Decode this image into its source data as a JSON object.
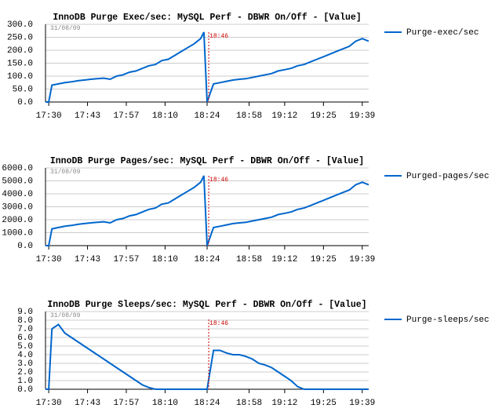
{
  "chart_data": [
    {
      "type": "line",
      "title": "InnoDB Purge Exec/sec: MySQL Perf - DBWR On/Off - [Value]",
      "date_label": "31/08/09",
      "annotation": {
        "text": "18:46",
        "x": 50.5
      },
      "x": [
        0,
        1,
        2,
        4,
        6,
        8,
        10,
        12,
        14,
        16,
        18,
        20,
        22,
        24,
        26,
        28,
        30,
        32,
        34,
        36,
        38,
        40,
        42,
        44,
        46,
        48,
        49,
        50,
        52,
        54,
        56,
        58,
        60,
        62,
        64,
        66,
        68,
        70,
        72,
        74,
        76,
        78,
        80,
        82,
        84,
        86,
        88,
        90,
        92,
        94,
        96,
        98,
        100
      ],
      "series": [
        {
          "name": "Purge-exec/sec",
          "color": "#0066cc",
          "values": [
            0,
            0,
            65,
            70,
            75,
            78,
            82,
            85,
            88,
            90,
            92,
            88,
            100,
            105,
            115,
            120,
            130,
            140,
            145,
            160,
            165,
            180,
            195,
            210,
            225,
            245,
            270,
            0,
            70,
            75,
            80,
            85,
            88,
            90,
            95,
            100,
            105,
            110,
            120,
            125,
            130,
            140,
            145,
            155,
            165,
            175,
            185,
            195,
            205,
            215,
            235,
            245,
            235
          ]
        }
      ],
      "xlim": [
        0,
        100
      ],
      "xticks": [
        {
          "value": 1,
          "label": "17:30"
        },
        {
          "value": 13,
          "label": "17:43"
        },
        {
          "value": 25,
          "label": "17:57"
        },
        {
          "value": 37,
          "label": "18:10"
        },
        {
          "value": 50,
          "label": "18:24"
        },
        {
          "value": 63,
          "label": "18:58"
        },
        {
          "value": 74,
          "label": "19:12"
        },
        {
          "value": 86,
          "label": "19:25"
        },
        {
          "value": 98,
          "label": "19:39"
        }
      ],
      "ylim": [
        0,
        300
      ],
      "yticks": [
        {
          "value": 0,
          "label": "0.0"
        },
        {
          "value": 50,
          "label": "50.0"
        },
        {
          "value": 100,
          "label": "100.0"
        },
        {
          "value": 150,
          "label": "150.0"
        },
        {
          "value": 200,
          "label": "200.0"
        },
        {
          "value": 250,
          "label": "250.0"
        },
        {
          "value": 300,
          "label": "300.0"
        }
      ],
      "grid": true
    },
    {
      "type": "line",
      "title": "InnoDB Purge Pages/sec: MySQL Perf - DBWR On/Off - [Value]",
      "date_label": "31/08/09",
      "annotation": {
        "text": "18:46",
        "x": 50.5
      },
      "x": [
        0,
        1,
        2,
        4,
        6,
        8,
        10,
        12,
        14,
        16,
        18,
        20,
        22,
        24,
        26,
        28,
        30,
        32,
        34,
        36,
        38,
        40,
        42,
        44,
        46,
        48,
        49,
        50,
        52,
        54,
        56,
        58,
        60,
        62,
        64,
        66,
        68,
        70,
        72,
        74,
        76,
        78,
        80,
        82,
        84,
        86,
        88,
        90,
        92,
        94,
        96,
        98,
        100
      ],
      "series": [
        {
          "name": "Purged-pages/sec",
          "color": "#0066cc",
          "values": [
            0,
            0,
            1300,
            1400,
            1500,
            1560,
            1640,
            1700,
            1760,
            1800,
            1840,
            1760,
            2000,
            2100,
            2300,
            2400,
            2600,
            2800,
            2900,
            3200,
            3300,
            3600,
            3900,
            4200,
            4500,
            4900,
            5400,
            0,
            1400,
            1500,
            1600,
            1700,
            1760,
            1800,
            1900,
            2000,
            2100,
            2200,
            2400,
            2500,
            2600,
            2800,
            2900,
            3100,
            3300,
            3500,
            3700,
            3900,
            4100,
            4300,
            4700,
            4900,
            4700
          ]
        }
      ],
      "xlim": [
        0,
        100
      ],
      "xticks": [
        {
          "value": 1,
          "label": "17:30"
        },
        {
          "value": 13,
          "label": "17:43"
        },
        {
          "value": 25,
          "label": "17:57"
        },
        {
          "value": 37,
          "label": "18:10"
        },
        {
          "value": 50,
          "label": "18:24"
        },
        {
          "value": 63,
          "label": "18:58"
        },
        {
          "value": 74,
          "label": "19:12"
        },
        {
          "value": 86,
          "label": "19:25"
        },
        {
          "value": 98,
          "label": "19:39"
        }
      ],
      "ylim": [
        0,
        6000
      ],
      "yticks": [
        {
          "value": 0,
          "label": "0.0"
        },
        {
          "value": 1000,
          "label": "1000.0"
        },
        {
          "value": 2000,
          "label": "2000.0"
        },
        {
          "value": 3000,
          "label": "3000.0"
        },
        {
          "value": 4000,
          "label": "4000.0"
        },
        {
          "value": 5000,
          "label": "5000.0"
        },
        {
          "value": 6000,
          "label": "6000.0"
        }
      ],
      "grid": true
    },
    {
      "type": "line",
      "title": "InnoDB Purge Sleeps/sec: MySQL Perf - DBWR On/Off - [Value]",
      "date_label": "31/08/09",
      "annotation": {
        "text": "18:46",
        "x": 50.5
      },
      "x": [
        0,
        1,
        2,
        4,
        6,
        8,
        10,
        12,
        14,
        16,
        18,
        20,
        22,
        24,
        26,
        28,
        30,
        32,
        34,
        36,
        38,
        40,
        42,
        44,
        46,
        48,
        49,
        50,
        52,
        54,
        56,
        58,
        60,
        62,
        64,
        66,
        68,
        70,
        72,
        74,
        76,
        78,
        80,
        82,
        84,
        86,
        88,
        90,
        92,
        94,
        96,
        98,
        100
      ],
      "series": [
        {
          "name": "Purge-sleeps/sec",
          "color": "#0066cc",
          "values": [
            0,
            0,
            7,
            7.5,
            6.5,
            6,
            5.5,
            5,
            4.5,
            4,
            3.5,
            3,
            2.5,
            2,
            1.5,
            1,
            0.5,
            0.2,
            0,
            0,
            0,
            0,
            0,
            0,
            0,
            0,
            0,
            0,
            4.5,
            4.5,
            4.2,
            4,
            4,
            3.8,
            3.5,
            3,
            2.8,
            2.5,
            2,
            1.5,
            1,
            0.3,
            0,
            0,
            0,
            0,
            0,
            0,
            0,
            0,
            0,
            0,
            0
          ]
        }
      ],
      "xlim": [
        0,
        100
      ],
      "xticks": [
        {
          "value": 1,
          "label": "17:30"
        },
        {
          "value": 13,
          "label": "17:43"
        },
        {
          "value": 25,
          "label": "17:57"
        },
        {
          "value": 37,
          "label": "18:10"
        },
        {
          "value": 50,
          "label": "18:24"
        },
        {
          "value": 63,
          "label": "18:58"
        },
        {
          "value": 74,
          "label": "19:12"
        },
        {
          "value": 86,
          "label": "19:25"
        },
        {
          "value": 98,
          "label": "19:39"
        }
      ],
      "ylim": [
        0,
        9
      ],
      "yticks": [
        {
          "value": 0,
          "label": "0.0"
        },
        {
          "value": 1,
          "label": "1.0"
        },
        {
          "value": 2,
          "label": "2.0"
        },
        {
          "value": 3,
          "label": "3.0"
        },
        {
          "value": 4,
          "label": "4.0"
        },
        {
          "value": 5,
          "label": "5.0"
        },
        {
          "value": 6,
          "label": "6.0"
        },
        {
          "value": 7,
          "label": "7.0"
        },
        {
          "value": 8,
          "label": "8.0"
        },
        {
          "value": 9,
          "label": "9.0"
        }
      ],
      "grid": true
    }
  ]
}
